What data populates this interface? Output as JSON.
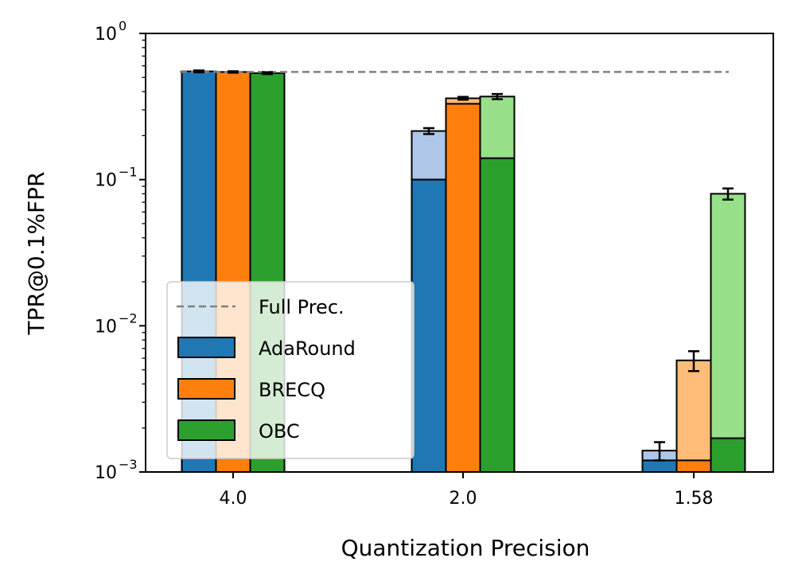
{
  "chart_data": {
    "type": "bar",
    "subtype": "grouped-stacked-log",
    "xlabel": "Quantization Precision",
    "ylabel": "TPR@0.1%FPR",
    "yscale": "log",
    "ylim": [
      0.001,
      1.0
    ],
    "ytick_labels": [
      {
        "value": 1.0,
        "base": "10",
        "exp": "0"
      },
      {
        "value": 0.1,
        "base": "10",
        "exp": "−1"
      },
      {
        "value": 0.01,
        "base": "10",
        "exp": "−2"
      },
      {
        "value": 0.001,
        "base": "10",
        "exp": "−3"
      }
    ],
    "categories": [
      "4.0",
      "2.0",
      "1.58"
    ],
    "series": [
      {
        "name": "AdaRound",
        "color": "#1f77b4",
        "light_color": "#aec7e8",
        "base_values": [
          0.55,
          0.1,
          0.0012
        ],
        "top_values": [
          0.55,
          0.215,
          0.0014
        ],
        "error": [
          0.008,
          0.01,
          0.0002
        ]
      },
      {
        "name": "BRECQ",
        "color": "#ff7f0e",
        "light_color": "#ffbb78",
        "base_values": [
          0.545,
          0.33,
          0.0012
        ],
        "top_values": [
          0.545,
          0.36,
          0.0058
        ],
        "error": [
          0.006,
          0.008,
          0.0009
        ]
      },
      {
        "name": "OBC",
        "color": "#2ca02c",
        "light_color": "#98df8a",
        "base_values": [
          0.535,
          0.14,
          0.0017
        ],
        "top_values": [
          0.535,
          0.37,
          0.08
        ],
        "error": [
          0.008,
          0.015,
          0.007
        ]
      }
    ],
    "reference_line": {
      "name": "Full Prec.",
      "value": 0.545,
      "color": "#808080"
    },
    "legend": {
      "placement": "lower-left",
      "entries": [
        "Full Prec.",
        "AdaRound",
        "BRECQ",
        "OBC"
      ]
    }
  }
}
